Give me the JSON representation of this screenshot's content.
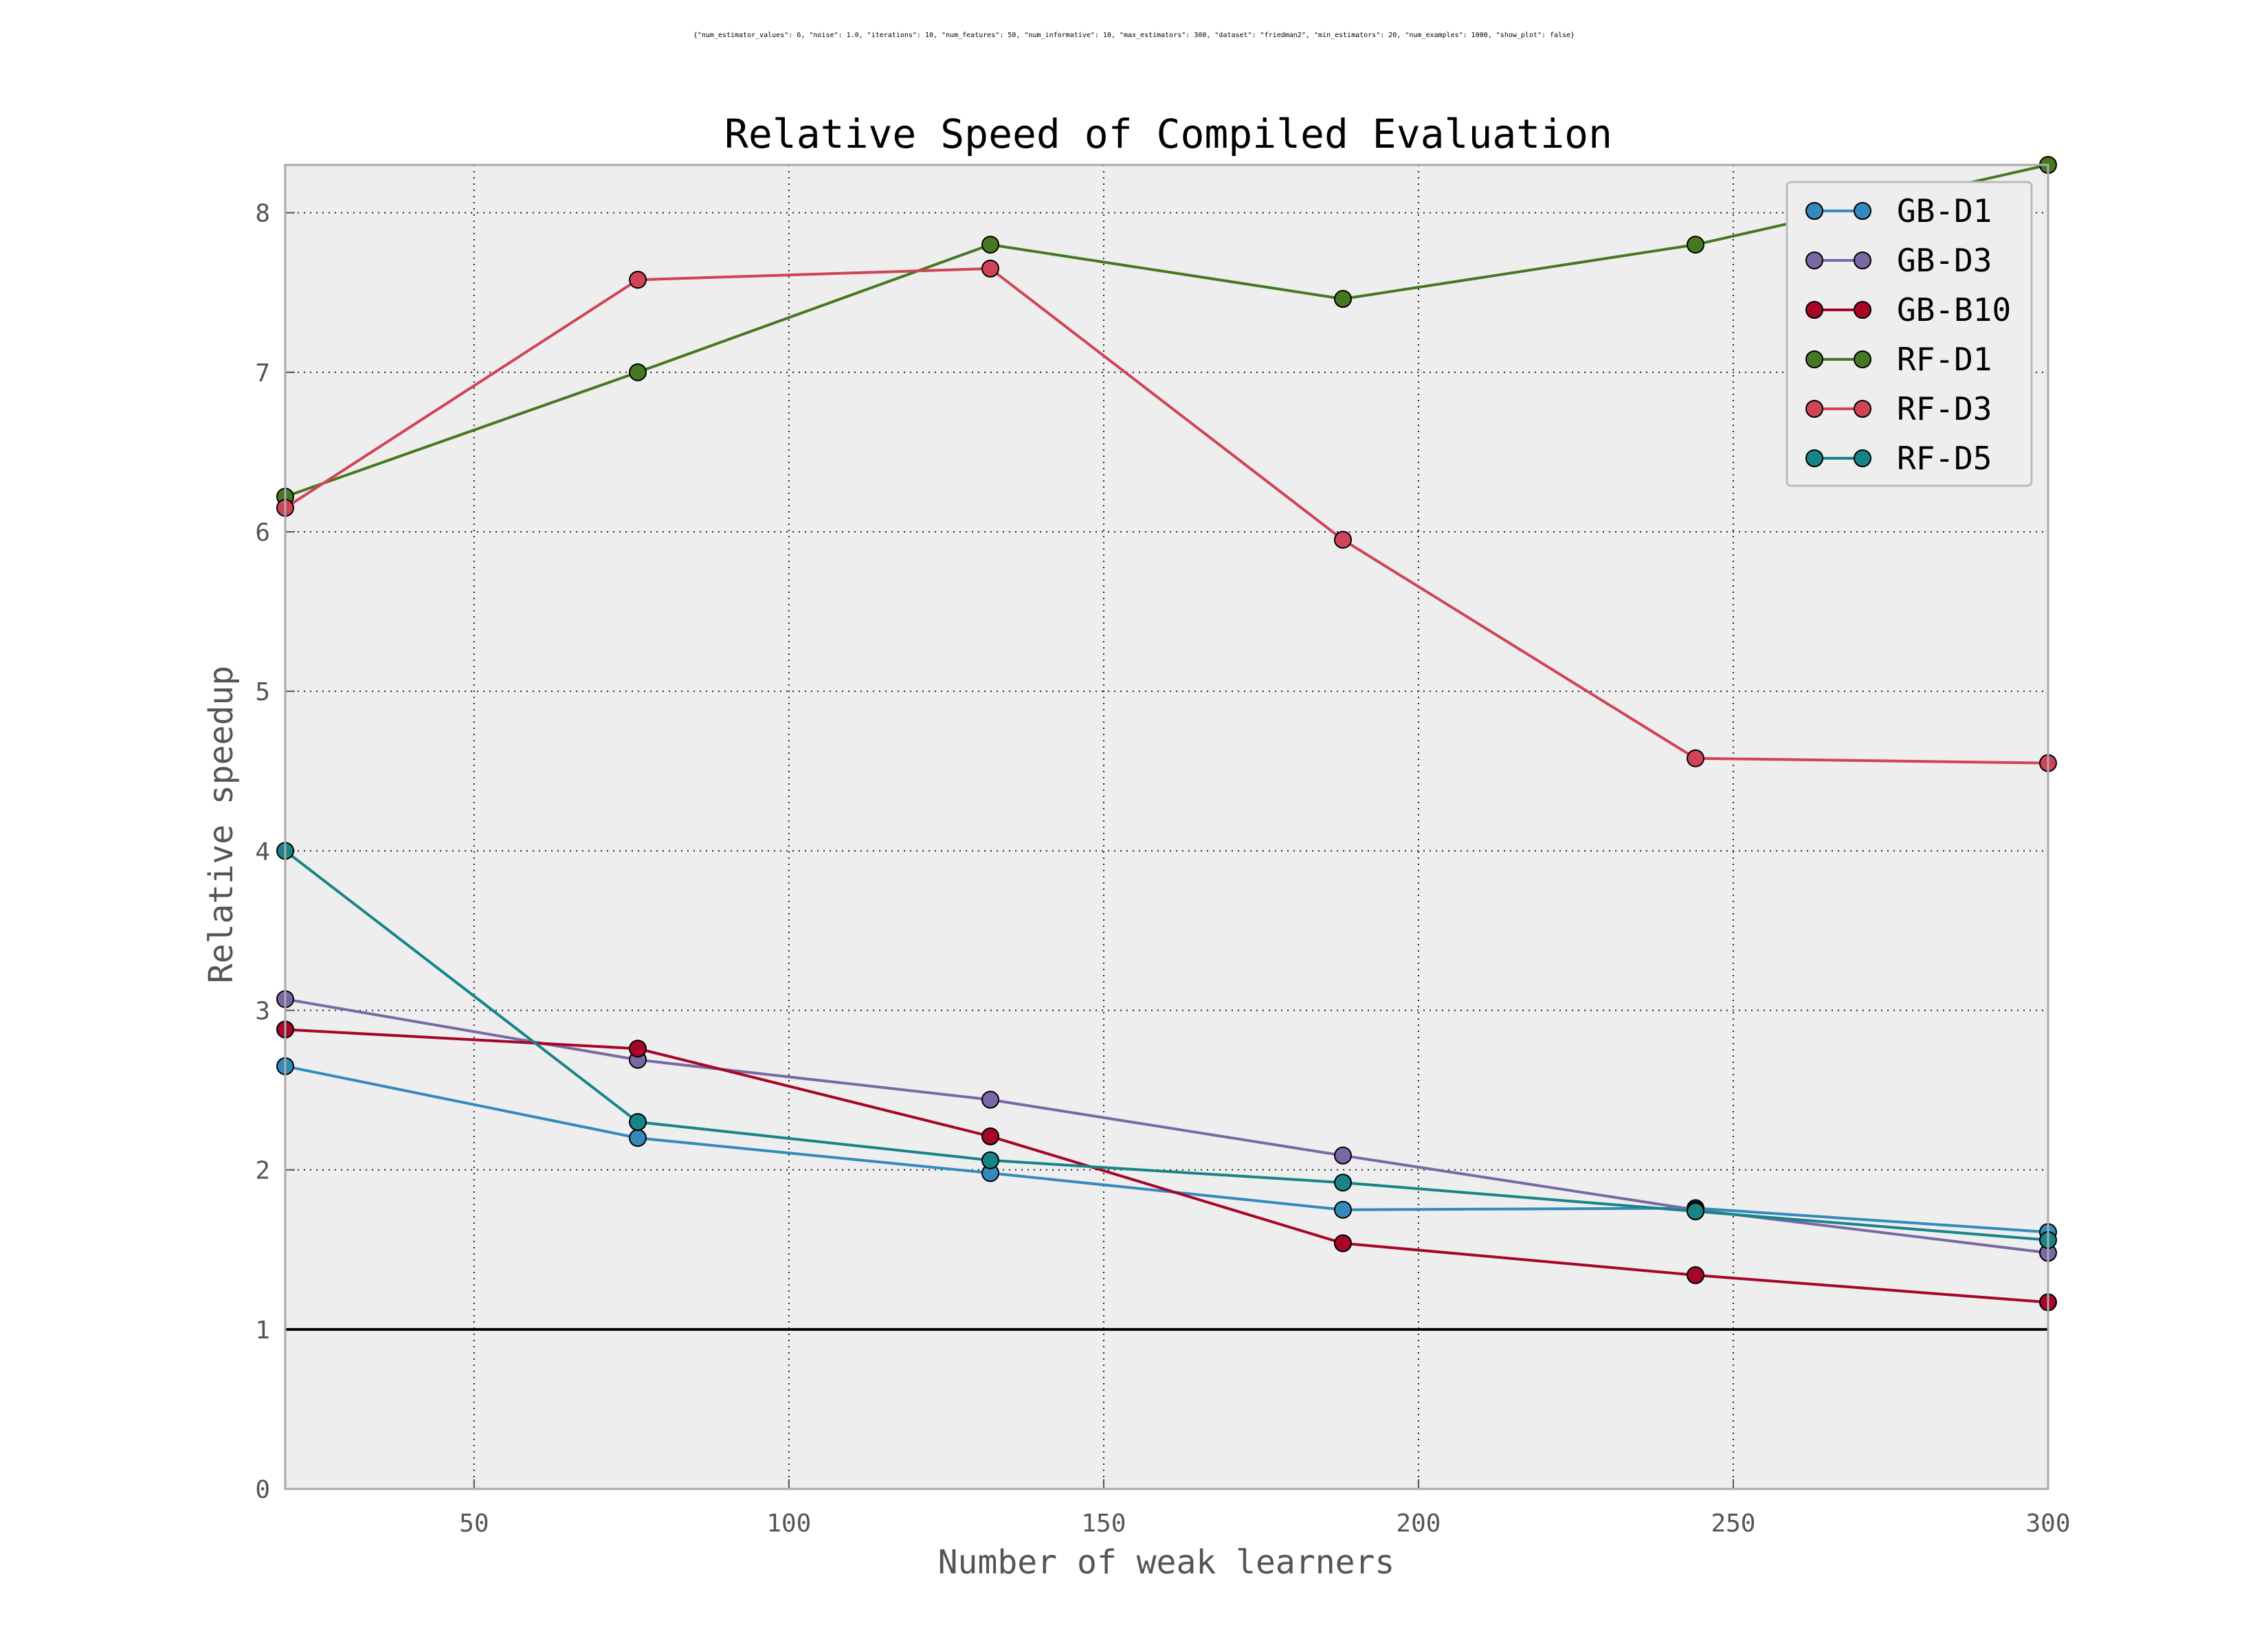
{
  "chart_data": {
    "type": "line",
    "subtitle": "{\"num_estimator_values\": 6, \"noise\": 1.0, \"iterations\": 10, \"num_features\": 50, \"num_informative\": 10, \"max_estimators\": 300, \"dataset\": \"friedman2\", \"min_estimators\": 20, \"num_examples\": 1000, \"show_plot\": false}",
    "title": "Relative Speed of Compiled Evaluation",
    "xlabel": "Number of weak learners",
    "ylabel": "Relative speedup",
    "xlim": [
      20,
      300
    ],
    "ylim": [
      0,
      8.3
    ],
    "xticks": [
      50,
      100,
      150,
      200,
      250,
      300
    ],
    "yticks": [
      0,
      1,
      2,
      3,
      4,
      5,
      6,
      7,
      8
    ],
    "grid": true,
    "legend_position": "top-right",
    "baseline": 1,
    "x": [
      20,
      76,
      132,
      188,
      244,
      300
    ],
    "series": [
      {
        "name": "GB-D1",
        "color": "#348ABD",
        "values": [
          2.65,
          2.2,
          1.98,
          1.75,
          1.76,
          1.61
        ]
      },
      {
        "name": "GB-D3",
        "color": "#7A68A6",
        "values": [
          3.07,
          2.69,
          2.44,
          2.09,
          1.75,
          1.48
        ]
      },
      {
        "name": "GB-B10",
        "color": "#A60628",
        "values": [
          2.88,
          2.76,
          2.21,
          1.54,
          1.34,
          1.17
        ]
      },
      {
        "name": "RF-D1",
        "color": "#467821",
        "values": [
          6.22,
          7.0,
          7.8,
          7.46,
          7.8,
          8.3
        ]
      },
      {
        "name": "RF-D3",
        "color": "#CF4457",
        "values": [
          6.15,
          7.58,
          7.65,
          5.95,
          4.58,
          4.55
        ]
      },
      {
        "name": "RF-D5",
        "color": "#188487",
        "values": [
          4.0,
          2.3,
          2.06,
          1.92,
          1.74,
          1.56
        ]
      }
    ]
  },
  "colors": {
    "plot_background": "#EEEEEE",
    "grid": "#222222",
    "baseline": "#000000",
    "frame": "#AAAAAA"
  }
}
